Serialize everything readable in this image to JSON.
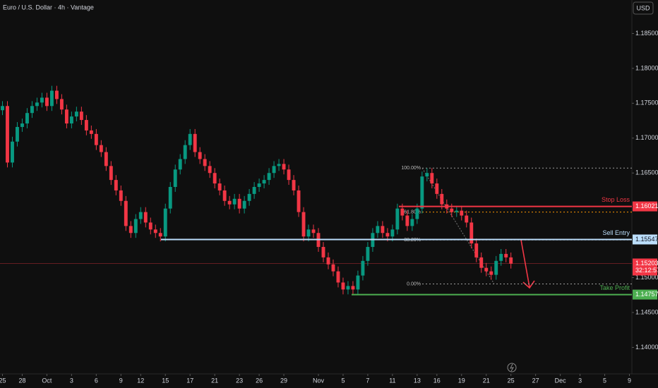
{
  "chart_data": {
    "type": "candlestick",
    "title": "Euro / U.S. Dollar · 4h · Vantage",
    "currency": "USD",
    "up_color": "#089981",
    "down_color": "#f23645",
    "grid": false,
    "xlim": [
      -0.5,
      127.5
    ],
    "ylim": [
      1.1362,
      1.1898
    ],
    "yticks": [
      {
        "value": 1.185,
        "label": "1.18500"
      },
      {
        "value": 1.18,
        "label": "1.18000"
      },
      {
        "value": 1.175,
        "label": "1.17500"
      },
      {
        "value": 1.17,
        "label": "1.17000"
      },
      {
        "value": 1.165,
        "label": "1.16500"
      },
      {
        "value": 1.15,
        "label": "1.15000"
      },
      {
        "value": 1.145,
        "label": "1.14500"
      },
      {
        "value": 1.14,
        "label": "1.14000"
      }
    ],
    "xticks": [
      {
        "value": 0,
        "label": "25"
      },
      {
        "value": 4,
        "label": "28"
      },
      {
        "value": 9,
        "label": "Oct"
      },
      {
        "value": 14,
        "label": "3"
      },
      {
        "value": 19,
        "label": "6"
      },
      {
        "value": 24,
        "label": "9"
      },
      {
        "value": 28,
        "label": "12"
      },
      {
        "value": 33,
        "label": "15"
      },
      {
        "value": 38,
        "label": "17"
      },
      {
        "value": 43,
        "label": "21"
      },
      {
        "value": 48,
        "label": "23"
      },
      {
        "value": 52,
        "label": "26"
      },
      {
        "value": 57,
        "label": "29"
      },
      {
        "value": 64,
        "label": "Nov"
      },
      {
        "value": 69,
        "label": "5"
      },
      {
        "value": 74,
        "label": "7"
      },
      {
        "value": 79,
        "label": "11"
      },
      {
        "value": 84,
        "label": "13"
      },
      {
        "value": 88,
        "label": "16"
      },
      {
        "value": 93,
        "label": "19"
      },
      {
        "value": 98,
        "label": "21"
      },
      {
        "value": 103,
        "label": "25"
      },
      {
        "value": 108,
        "label": "27"
      },
      {
        "value": 113,
        "label": "Dec"
      },
      {
        "value": 117,
        "label": "3"
      },
      {
        "value": 122,
        "label": "5"
      },
      {
        "value": 127,
        "label": "9"
      }
    ],
    "candles": [
      [
        1.174,
        1.1753,
        1.1733,
        1.1746
      ],
      [
        1.1746,
        1.1753,
        1.1658,
        1.1665
      ],
      [
        1.1665,
        1.1702,
        1.1658,
        1.1695
      ],
      [
        1.1695,
        1.1723,
        1.1688,
        1.1716
      ],
      [
        1.1716,
        1.1728,
        1.1709,
        1.1721
      ],
      [
        1.1721,
        1.1743,
        1.1714,
        1.1736
      ],
      [
        1.1736,
        1.1753,
        1.1729,
        1.1746
      ],
      [
        1.1746,
        1.1758,
        1.1739,
        1.1751
      ],
      [
        1.1751,
        1.1765,
        1.1744,
        1.1758
      ],
      [
        1.1758,
        1.1765,
        1.1739,
        1.1746
      ],
      [
        1.1746,
        1.1775,
        1.1739,
        1.1768
      ],
      [
        1.1768,
        1.1775,
        1.1749,
        1.1756
      ],
      [
        1.1756,
        1.1763,
        1.1734,
        1.1741
      ],
      [
        1.1741,
        1.1748,
        1.1714,
        1.1721
      ],
      [
        1.1721,
        1.1738,
        1.1714,
        1.1731
      ],
      [
        1.1731,
        1.1745,
        1.1724,
        1.1738
      ],
      [
        1.1738,
        1.1745,
        1.1719,
        1.1726
      ],
      [
        1.1726,
        1.1733,
        1.1704,
        1.1711
      ],
      [
        1.1711,
        1.1718,
        1.1699,
        1.1706
      ],
      [
        1.1706,
        1.1713,
        1.1683,
        1.169
      ],
      [
        1.169,
        1.1697,
        1.1673,
        1.168
      ],
      [
        1.168,
        1.1687,
        1.1653,
        1.166
      ],
      [
        1.166,
        1.1667,
        1.1633,
        1.164
      ],
      [
        1.164,
        1.1647,
        1.1618,
        1.1625
      ],
      [
        1.1625,
        1.1632,
        1.1603,
        1.161
      ],
      [
        1.161,
        1.1617,
        1.1567,
        1.1574
      ],
      [
        1.1574,
        1.1581,
        1.1557,
        1.1564
      ],
      [
        1.1564,
        1.1591,
        1.1557,
        1.1584
      ],
      [
        1.1584,
        1.1601,
        1.1577,
        1.1594
      ],
      [
        1.1594,
        1.1601,
        1.1572,
        1.1579
      ],
      [
        1.1579,
        1.1586,
        1.1562,
        1.1569
      ],
      [
        1.1569,
        1.1576,
        1.1557,
        1.1564
      ],
      [
        1.1564,
        1.1571,
        1.1552,
        1.1559
      ],
      [
        1.1559,
        1.1606,
        1.1552,
        1.1599
      ],
      [
        1.1599,
        1.1637,
        1.1592,
        1.163
      ],
      [
        1.163,
        1.1662,
        1.1623,
        1.1655
      ],
      [
        1.1655,
        1.1677,
        1.1648,
        1.167
      ],
      [
        1.167,
        1.1697,
        1.1663,
        1.169
      ],
      [
        1.169,
        1.1713,
        1.1683,
        1.1706
      ],
      [
        1.1706,
        1.1713,
        1.1673,
        1.168
      ],
      [
        1.168,
        1.1687,
        1.1663,
        1.167
      ],
      [
        1.167,
        1.1677,
        1.1653,
        1.166
      ],
      [
        1.166,
        1.1667,
        1.1643,
        1.165
      ],
      [
        1.165,
        1.1657,
        1.1628,
        1.1635
      ],
      [
        1.1635,
        1.1642,
        1.1618,
        1.1625
      ],
      [
        1.1625,
        1.1632,
        1.1603,
        1.161
      ],
      [
        1.161,
        1.1617,
        1.1598,
        1.1605
      ],
      [
        1.1605,
        1.162,
        1.1598,
        1.1613
      ],
      [
        1.1613,
        1.162,
        1.1592,
        1.1599
      ],
      [
        1.1599,
        1.1617,
        1.1592,
        1.161
      ],
      [
        1.161,
        1.1627,
        1.1603,
        1.162
      ],
      [
        1.162,
        1.1637,
        1.1613,
        1.163
      ],
      [
        1.163,
        1.1642,
        1.1623,
        1.1635
      ],
      [
        1.1635,
        1.1647,
        1.1628,
        1.164
      ],
      [
        1.164,
        1.1657,
        1.1633,
        1.165
      ],
      [
        1.165,
        1.1667,
        1.1643,
        1.166
      ],
      [
        1.166,
        1.167,
        1.1653,
        1.1663
      ],
      [
        1.1663,
        1.167,
        1.1648,
        1.1655
      ],
      [
        1.1655,
        1.1662,
        1.1633,
        1.164
      ],
      [
        1.164,
        1.1647,
        1.1618,
        1.1625
      ],
      [
        1.1625,
        1.1632,
        1.1587,
        1.1594
      ],
      [
        1.1594,
        1.1601,
        1.1552,
        1.1559
      ],
      [
        1.1559,
        1.1576,
        1.1552,
        1.1569
      ],
      [
        1.1569,
        1.1576,
        1.1557,
        1.1564
      ],
      [
        1.1564,
        1.1571,
        1.1537,
        1.1544
      ],
      [
        1.1544,
        1.1551,
        1.1522,
        1.1529
      ],
      [
        1.1529,
        1.1536,
        1.1512,
        1.1519
      ],
      [
        1.1519,
        1.1526,
        1.1502,
        1.1509
      ],
      [
        1.1509,
        1.1516,
        1.1486,
        1.1493
      ],
      [
        1.1493,
        1.15,
        1.1476,
        1.1483
      ],
      [
        1.1483,
        1.1495,
        1.1476,
        1.1488
      ],
      [
        1.1488,
        1.1495,
        1.1476,
        1.1483
      ],
      [
        1.1483,
        1.151,
        1.1476,
        1.1503
      ],
      [
        1.1503,
        1.1531,
        1.1496,
        1.1524
      ],
      [
        1.1524,
        1.1551,
        1.1517,
        1.1544
      ],
      [
        1.1544,
        1.1571,
        1.1537,
        1.1564
      ],
      [
        1.1564,
        1.1581,
        1.1557,
        1.1574
      ],
      [
        1.1574,
        1.1581,
        1.1557,
        1.1564
      ],
      [
        1.1564,
        1.1571,
        1.1552,
        1.1559
      ],
      [
        1.1559,
        1.1576,
        1.1552,
        1.1569
      ],
      [
        1.1569,
        1.1606,
        1.1562,
        1.1599
      ],
      [
        1.1599,
        1.1606,
        1.1582,
        1.1589
      ],
      [
        1.1589,
        1.1596,
        1.1567,
        1.1574
      ],
      [
        1.1574,
        1.1591,
        1.1567,
        1.1584
      ],
      [
        1.1584,
        1.1606,
        1.1577,
        1.1599
      ],
      [
        1.1599,
        1.1652,
        1.1592,
        1.1645
      ],
      [
        1.1645,
        1.1657,
        1.1638,
        1.165
      ],
      [
        1.165,
        1.1657,
        1.1628,
        1.1635
      ],
      [
        1.1635,
        1.1642,
        1.1613,
        1.162
      ],
      [
        1.162,
        1.1627,
        1.1598,
        1.1605
      ],
      [
        1.1605,
        1.1612,
        1.1592,
        1.1599
      ],
      [
        1.1599,
        1.1606,
        1.1587,
        1.1594
      ],
      [
        1.1594,
        1.1603,
        1.1587,
        1.1596
      ],
      [
        1.1596,
        1.1603,
        1.1582,
        1.1589
      ],
      [
        1.1589,
        1.1596,
        1.1572,
        1.1579
      ],
      [
        1.1579,
        1.1586,
        1.1542,
        1.1549
      ],
      [
        1.1549,
        1.1556,
        1.1522,
        1.1529
      ],
      [
        1.1529,
        1.1536,
        1.1507,
        1.1514
      ],
      [
        1.1514,
        1.1521,
        1.1502,
        1.1509
      ],
      [
        1.1509,
        1.1516,
        1.1497,
        1.1504
      ],
      [
        1.1504,
        1.1531,
        1.1497,
        1.1524
      ],
      [
        1.1524,
        1.1541,
        1.1517,
        1.1534
      ],
      [
        1.1534,
        1.1541,
        1.1522,
        1.1529
      ],
      [
        1.1529,
        1.1536,
        1.1513,
        1.152
      ]
    ],
    "levels": [
      {
        "name": "Stop Loss",
        "value": 1.16021,
        "color": "#f23645"
      },
      {
        "name": "Sell Entry",
        "value": 1.15547,
        "color": "#bbdefb"
      },
      {
        "name": "Take Profit",
        "value": 1.14757,
        "color": "#4caf50"
      }
    ],
    "fib": [
      {
        "label": "100.00%",
        "price": 1.1657
      },
      {
        "label": "61.80%",
        "price": 1.1594
      },
      {
        "label": "38.20%",
        "price": 1.1554
      },
      {
        "label": "0.00%",
        "price": 1.1491
      }
    ],
    "last_price": {
      "value": 1.15203,
      "countdown": "32:12:57",
      "color": "#f23645"
    }
  }
}
